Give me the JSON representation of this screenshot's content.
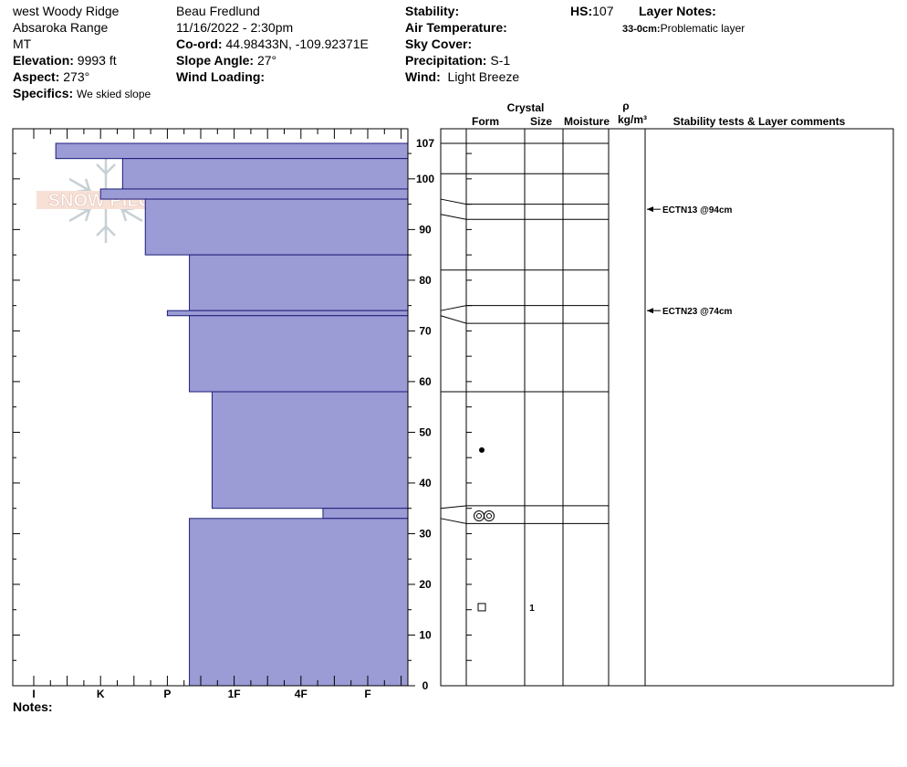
{
  "header": {
    "location": "west Woody Ridge",
    "range": "Absaroka Range",
    "state": "MT",
    "elevation_label": "Elevation:",
    "elevation": "9993 ft",
    "aspect_label": "Aspect:",
    "aspect": "273°",
    "specifics_label": "Specifics:",
    "specifics": "We skied slope",
    "observer": "Beau  Fredlund",
    "datetime": "11/16/2022 - 2:30pm",
    "coord_label": "Co-ord:",
    "coord": "44.98433N, -109.92371E",
    "slope_label": "Slope Angle:",
    "slope": "27°",
    "wind_loading_label": "Wind Loading:",
    "stability_label": "Stability:",
    "air_temp_label": "Air Temperature:",
    "sky_label": "Sky Cover:",
    "precip_label": "Precipitation:",
    "precip": "S-1",
    "wind_label": "Wind:",
    "wind": "Light Breeze",
    "hs_label": "HS:",
    "hs": "107",
    "layer_notes_label": "Layer Notes:",
    "layer_note_range": "33-0cm:",
    "layer_note_text": "Problematic layer"
  },
  "logo_text": "SNOW PILOT",
  "notes_label": "Notes:",
  "columns": {
    "crystal": "Crystal",
    "form": "Form",
    "size": "Size",
    "moisture": "Moisture",
    "rho": "ρ",
    "density_unit": "kg/m³",
    "comments": "Stability tests & Layer comments"
  },
  "chart_data": {
    "type": "snow-profile",
    "hs": 107,
    "y_range": [
      0,
      107
    ],
    "y_ticks": [
      0,
      10,
      20,
      30,
      40,
      50,
      60,
      70,
      80,
      90,
      100,
      107
    ],
    "hardness_scale": [
      "I",
      "K",
      "P",
      "1F",
      "4F",
      "F"
    ],
    "layers": [
      {
        "top": 104,
        "bottom": 107,
        "hardness": 0.33
      },
      {
        "top": 98,
        "bottom": 104,
        "hardness": 1.33
      },
      {
        "top": 96,
        "bottom": 98,
        "hardness": 1.0
      },
      {
        "top": 85,
        "bottom": 96,
        "hardness": 1.67
      },
      {
        "top": 74,
        "bottom": 85,
        "hardness": 2.33
      },
      {
        "top": 73,
        "bottom": 74,
        "hardness": 2.0
      },
      {
        "top": 58,
        "bottom": 73,
        "hardness": 2.33
      },
      {
        "top": 35,
        "bottom": 58,
        "hardness": 2.67
      },
      {
        "top": 33,
        "bottom": 35,
        "hardness": 4.33
      },
      {
        "top": 0,
        "bottom": 33,
        "hardness": 2.33
      }
    ],
    "layer_boundaries": [
      0,
      33,
      35,
      58,
      73,
      74,
      85,
      96,
      98,
      104,
      107
    ],
    "grain_forms": [
      {
        "height": 46.5,
        "form": "rounds-dot"
      },
      {
        "height": 33.5,
        "form": "melt-forms-double-ring"
      },
      {
        "height": 15.5,
        "form": "faceted-square",
        "size": "1"
      }
    ],
    "tests": [
      {
        "height": 94,
        "label": "ECTN13 @94cm"
      },
      {
        "height": 74,
        "label": "ECTN23 @74cm"
      }
    ]
  }
}
